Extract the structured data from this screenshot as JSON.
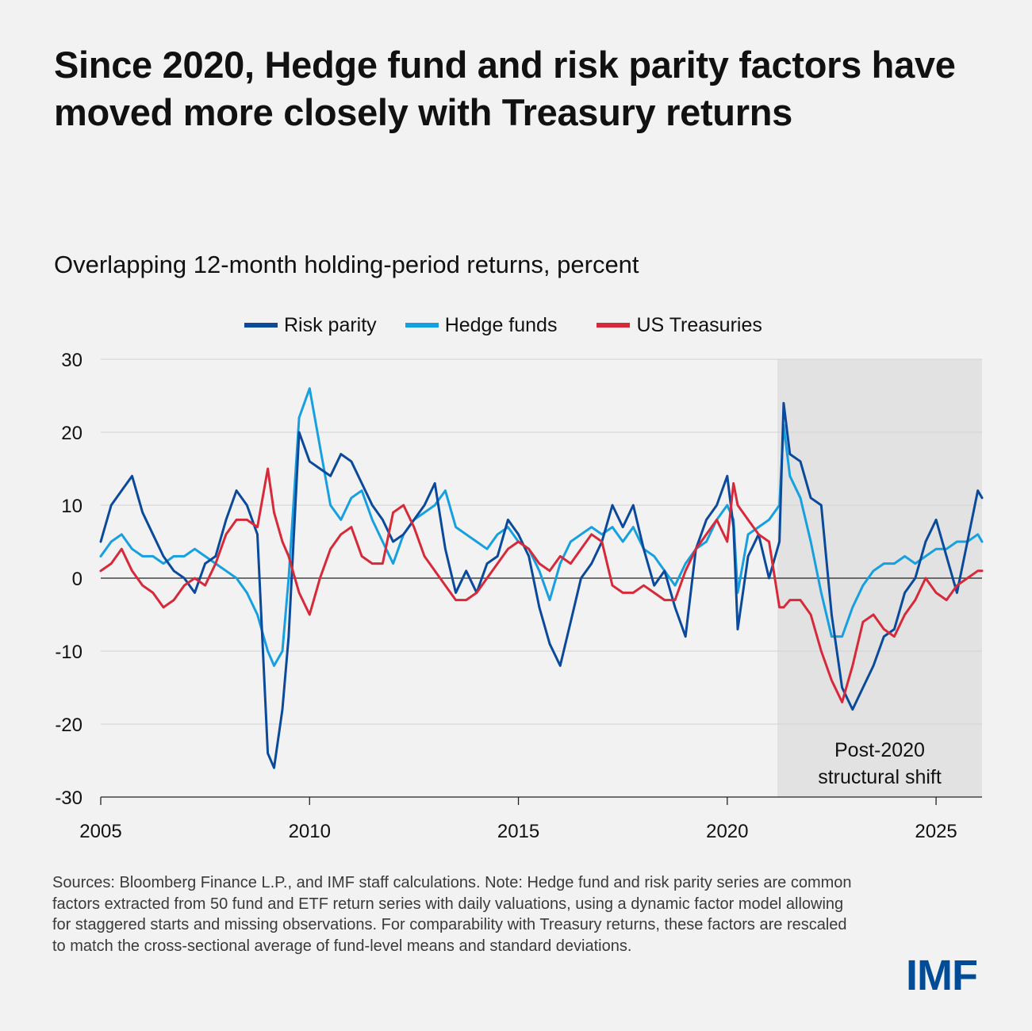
{
  "title": "Since 2020, Hedge fund and risk parity factors have moved more closely with Treasury returns",
  "subtitle": "Overlapping 12-month holding-period returns, percent",
  "footnote": "Sources: Bloomberg Finance L.P., and IMF staff calculations. Note: Hedge fund and risk parity series are common factors extracted from 50 fund and ETF return series with daily valuations, using a dynamic factor model allowing for staggered starts and missing observations. For comparability with Treasury returns, these factors are rescaled to match the cross-sectional average of fund-level means and standard deviations.",
  "logo": "IMF",
  "colors": {
    "risk_parity": "#0b4a9b",
    "hedge_funds": "#16a0e0",
    "us_treasuries": "#d62a3a",
    "shade": "#e2e2e2"
  },
  "chart_data": {
    "type": "line",
    "title": "Overlapping 12-month holding-period returns, percent",
    "xlabel": "",
    "ylabel": "",
    "xlim": [
      2005,
      2026.1
    ],
    "ylim": [
      -30,
      30
    ],
    "xticks": [
      2005,
      2010,
      2015,
      2020,
      2025
    ],
    "yticks": [
      30,
      20,
      10,
      0,
      -10,
      -20,
      -30
    ],
    "grid": "horizontal",
    "legend": "top-center",
    "shaded_region": {
      "x_start": 2021.2,
      "x_end": 2026.1,
      "label_line1": "Post-2020",
      "label_line2": "structural shift"
    },
    "series": [
      {
        "name": "Risk parity",
        "x": [
          2005.0,
          2005.25,
          2005.5,
          2005.75,
          2006.0,
          2006.25,
          2006.5,
          2006.75,
          2007.0,
          2007.25,
          2007.5,
          2007.75,
          2008.0,
          2008.25,
          2008.5,
          2008.75,
          2009.0,
          2009.15,
          2009.35,
          2009.5,
          2009.75,
          2010.0,
          2010.25,
          2010.5,
          2010.75,
          2011.0,
          2011.25,
          2011.5,
          2011.75,
          2012.0,
          2012.25,
          2012.5,
          2012.75,
          2013.0,
          2013.25,
          2013.5,
          2013.75,
          2014.0,
          2014.25,
          2014.5,
          2014.75,
          2015.0,
          2015.25,
          2015.5,
          2015.75,
          2016.0,
          2016.25,
          2016.5,
          2016.75,
          2017.0,
          2017.25,
          2017.5,
          2017.75,
          2018.0,
          2018.25,
          2018.5,
          2018.75,
          2019.0,
          2019.25,
          2019.5,
          2019.75,
          2020.0,
          2020.15,
          2020.25,
          2020.5,
          2020.75,
          2021.0,
          2021.25,
          2021.35,
          2021.5,
          2021.75,
          2022.0,
          2022.25,
          2022.5,
          2022.75,
          2023.0,
          2023.25,
          2023.5,
          2023.75,
          2024.0,
          2024.25,
          2024.5,
          2024.75,
          2025.0,
          2025.25,
          2025.5,
          2025.75,
          2026.0,
          2026.1
        ],
        "values": [
          5,
          10,
          12,
          14,
          9,
          6,
          3,
          1,
          0,
          -2,
          2,
          3,
          8,
          12,
          10,
          6,
          -24,
          -26,
          -18,
          -8,
          20,
          16,
          15,
          14,
          17,
          16,
          13,
          10,
          8,
          5,
          6,
          8,
          10,
          13,
          4,
          -2,
          1,
          -2,
          2,
          3,
          8,
          6,
          3,
          -4,
          -9,
          -12,
          -6,
          0,
          2,
          5,
          10,
          7,
          10,
          4,
          -1,
          1,
          -4,
          -8,
          4,
          8,
          10,
          14,
          7,
          -7,
          3,
          6,
          0,
          5,
          24,
          17,
          16,
          11,
          10,
          -5,
          -15,
          -18,
          -15,
          -12,
          -8,
          -7,
          -2,
          0,
          5,
          8,
          3,
          -2,
          5,
          12,
          11
        ]
      },
      {
        "name": "Hedge funds",
        "x": [
          2005.0,
          2005.25,
          2005.5,
          2005.75,
          2006.0,
          2006.25,
          2006.5,
          2006.75,
          2007.0,
          2007.25,
          2007.5,
          2007.75,
          2008.0,
          2008.25,
          2008.5,
          2008.75,
          2009.0,
          2009.15,
          2009.35,
          2009.5,
          2009.75,
          2010.0,
          2010.25,
          2010.5,
          2010.75,
          2011.0,
          2011.25,
          2011.5,
          2011.75,
          2012.0,
          2012.25,
          2012.5,
          2012.75,
          2013.0,
          2013.25,
          2013.5,
          2013.75,
          2014.0,
          2014.25,
          2014.5,
          2014.75,
          2015.0,
          2015.25,
          2015.5,
          2015.75,
          2016.0,
          2016.25,
          2016.5,
          2016.75,
          2017.0,
          2017.25,
          2017.5,
          2017.75,
          2018.0,
          2018.25,
          2018.5,
          2018.75,
          2019.0,
          2019.25,
          2019.5,
          2019.75,
          2020.0,
          2020.15,
          2020.25,
          2020.5,
          2020.75,
          2021.0,
          2021.25,
          2021.35,
          2021.5,
          2021.75,
          2022.0,
          2022.25,
          2022.5,
          2022.75,
          2023.0,
          2023.25,
          2023.5,
          2023.75,
          2024.0,
          2024.25,
          2024.5,
          2024.75,
          2025.0,
          2025.25,
          2025.5,
          2025.75,
          2026.0,
          2026.1
        ],
        "values": [
          3,
          5,
          6,
          4,
          3,
          3,
          2,
          3,
          3,
          4,
          3,
          2,
          1,
          0,
          -2,
          -5,
          -10,
          -12,
          -10,
          0,
          22,
          26,
          18,
          10,
          8,
          11,
          12,
          8,
          5,
          2,
          6,
          8,
          9,
          10,
          12,
          7,
          6,
          5,
          4,
          6,
          7,
          5,
          4,
          1,
          -3,
          2,
          5,
          6,
          7,
          6,
          7,
          5,
          7,
          4,
          3,
          1,
          -1,
          2,
          4,
          5,
          8,
          10,
          8,
          -2,
          6,
          7,
          8,
          10,
          21,
          14,
          11,
          5,
          -2,
          -8,
          -8,
          -4,
          -1,
          1,
          2,
          2,
          3,
          2,
          3,
          4,
          4,
          5,
          5,
          6,
          5
        ]
      },
      {
        "name": "US Treasuries",
        "x": [
          2005.0,
          2005.25,
          2005.5,
          2005.75,
          2006.0,
          2006.25,
          2006.5,
          2006.75,
          2007.0,
          2007.25,
          2007.5,
          2007.75,
          2008.0,
          2008.25,
          2008.5,
          2008.75,
          2009.0,
          2009.15,
          2009.35,
          2009.5,
          2009.75,
          2010.0,
          2010.25,
          2010.5,
          2010.75,
          2011.0,
          2011.25,
          2011.5,
          2011.75,
          2012.0,
          2012.25,
          2012.5,
          2012.75,
          2013.0,
          2013.25,
          2013.5,
          2013.75,
          2014.0,
          2014.25,
          2014.5,
          2014.75,
          2015.0,
          2015.25,
          2015.5,
          2015.75,
          2016.0,
          2016.25,
          2016.5,
          2016.75,
          2017.0,
          2017.25,
          2017.5,
          2017.75,
          2018.0,
          2018.25,
          2018.5,
          2018.75,
          2019.0,
          2019.25,
          2019.5,
          2019.75,
          2020.0,
          2020.15,
          2020.25,
          2020.5,
          2020.75,
          2021.0,
          2021.25,
          2021.35,
          2021.5,
          2021.75,
          2022.0,
          2022.25,
          2022.5,
          2022.75,
          2023.0,
          2023.25,
          2023.5,
          2023.75,
          2024.0,
          2024.25,
          2024.5,
          2024.75,
          2025.0,
          2025.25,
          2025.5,
          2025.75,
          2026.0,
          2026.1
        ],
        "values": [
          1,
          2,
          4,
          1,
          -1,
          -2,
          -4,
          -3,
          -1,
          0,
          -1,
          2,
          6,
          8,
          8,
          7,
          15,
          9,
          5,
          3,
          -2,
          -5,
          0,
          4,
          6,
          7,
          3,
          2,
          2,
          9,
          10,
          7,
          3,
          1,
          -1,
          -3,
          -3,
          -2,
          0,
          2,
          4,
          5,
          4,
          2,
          1,
          3,
          2,
          4,
          6,
          5,
          -1,
          -2,
          -2,
          -1,
          -2,
          -3,
          -3,
          1,
          4,
          6,
          8,
          5,
          13,
          10,
          8,
          6,
          5,
          -4,
          -4,
          -3,
          -3,
          -5,
          -10,
          -14,
          -17,
          -12,
          -6,
          -5,
          -7,
          -8,
          -5,
          -3,
          0,
          -2,
          -3,
          -1,
          0,
          1,
          1
        ]
      }
    ]
  }
}
